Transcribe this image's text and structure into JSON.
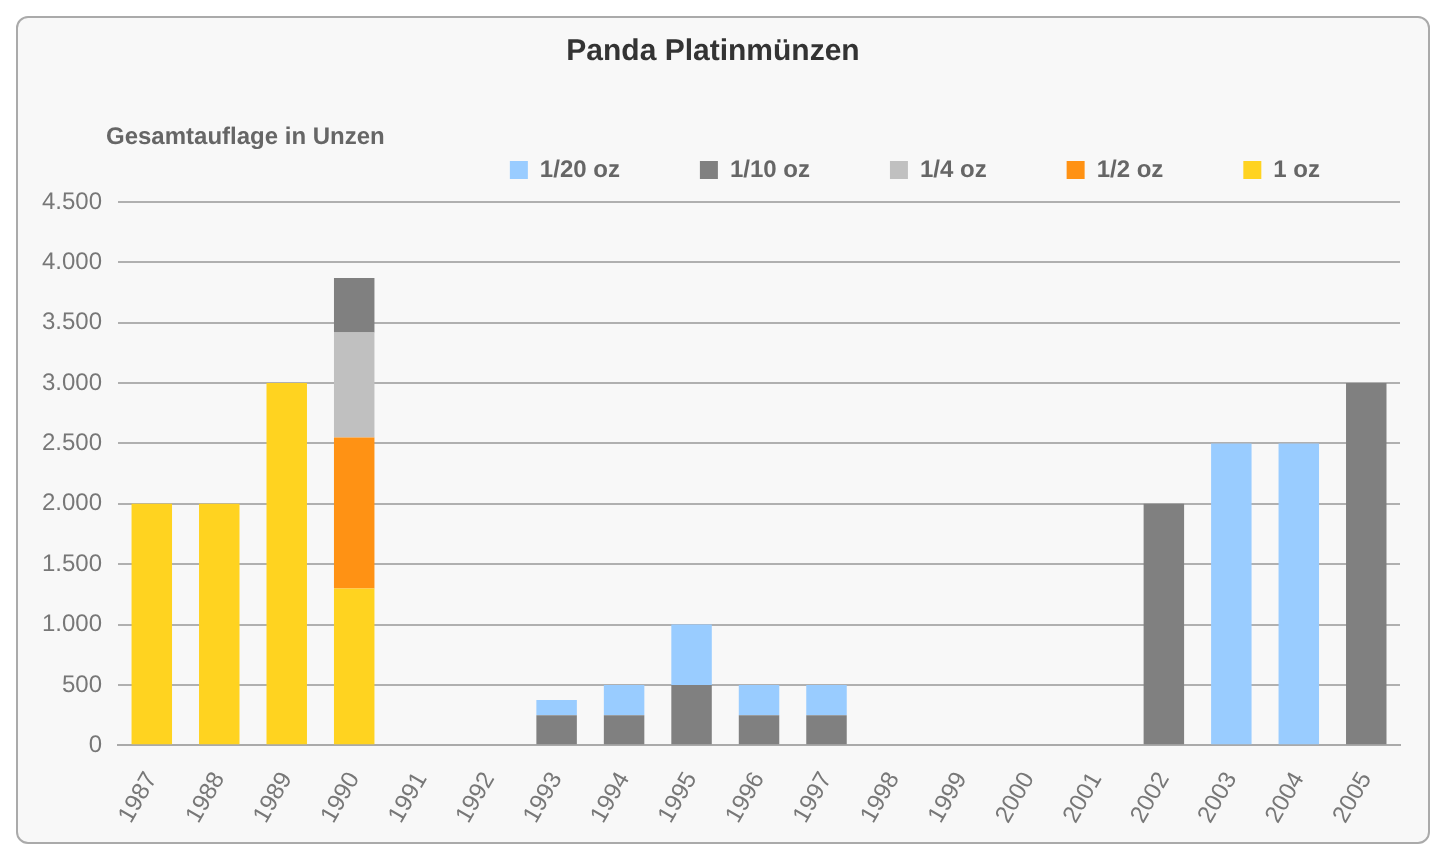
{
  "chart_data": {
    "type": "bar",
    "title": "Panda Platinmünzen",
    "ylabel": "Gesamtauflage in Unzen",
    "stacked": true,
    "legend": "top",
    "grid": "y",
    "categories": [
      "1987",
      "1988",
      "1989",
      "1990",
      "1991",
      "1992",
      "1993",
      "1994",
      "1995",
      "1996",
      "1997",
      "1998",
      "1999",
      "2000",
      "2001",
      "2002",
      "2003",
      "2004",
      "2005"
    ],
    "ylim": [
      0,
      4500
    ],
    "yticks": [
      {
        "value": 0,
        "label": "0"
      },
      {
        "value": 500,
        "label": "500"
      },
      {
        "value": 1000,
        "label": "1.000"
      },
      {
        "value": 1500,
        "label": "1.500"
      },
      {
        "value": 2000,
        "label": "2.000"
      },
      {
        "value": 2500,
        "label": "2.500"
      },
      {
        "value": 3000,
        "label": "3.000"
      },
      {
        "value": 3500,
        "label": "3.500"
      },
      {
        "value": 4000,
        "label": "4.000"
      },
      {
        "value": 4500,
        "label": "4.500"
      }
    ],
    "series": [
      {
        "name": "1 oz",
        "color": "#ffd320",
        "values": [
          2000,
          2000,
          3000,
          1300,
          null,
          null,
          null,
          null,
          null,
          null,
          null,
          null,
          null,
          null,
          null,
          null,
          null,
          null,
          null
        ]
      },
      {
        "name": "1/2 oz",
        "color": "#ff9214",
        "values": [
          null,
          null,
          null,
          1250,
          null,
          null,
          null,
          null,
          null,
          null,
          null,
          null,
          null,
          null,
          null,
          null,
          null,
          null,
          null
        ]
      },
      {
        "name": "1/4 oz",
        "color": "#c0c0c0",
        "values": [
          null,
          null,
          null,
          870,
          null,
          null,
          null,
          null,
          null,
          null,
          null,
          null,
          null,
          null,
          null,
          null,
          null,
          null,
          null
        ]
      },
      {
        "name": "1/10 oz",
        "color": "#808080",
        "values": [
          null,
          null,
          null,
          450,
          null,
          null,
          250,
          250,
          500,
          250,
          250,
          null,
          null,
          null,
          null,
          2000,
          null,
          null,
          3000
        ]
      },
      {
        "name": "1/20 oz",
        "color": "#99ccff",
        "values": [
          null,
          null,
          null,
          null,
          null,
          null,
          125,
          250,
          500,
          250,
          250,
          null,
          null,
          null,
          null,
          null,
          2500,
          2500,
          null
        ]
      }
    ]
  }
}
